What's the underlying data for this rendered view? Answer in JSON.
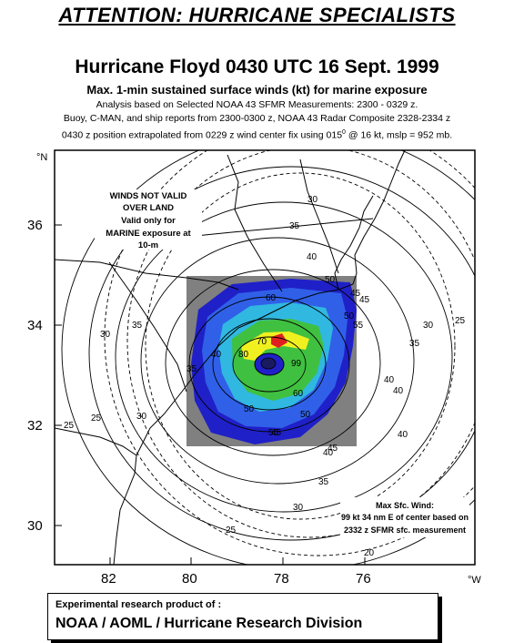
{
  "header": {
    "attention": "ATTENTION: HURRICANE SPECIALISTS",
    "title": "Hurricane Floyd 0430 UTC 16 Sept. 1999",
    "subtitle": "Max. 1-min sustained surface winds (kt) for marine exposure",
    "line1": "Analysis based on Selected NOAA 43 SFMR Measurements: 2300 - 0329 z.",
    "line2": "Buoy, C-MAN, and ship reports from 2300-0300 z, NOAA 43 Radar Composite 2328-2334 z",
    "line3_pre": "0430 z position extrapolated from 0229 z wind center fix using 015",
    "line3_sup": "0",
    "line3_post": " @ 16 kt, mslp = 952 mb."
  },
  "map": {
    "lat_labels": [
      "36",
      "34",
      "32",
      "30"
    ],
    "lon_labels": [
      "82",
      "80",
      "78",
      "76"
    ],
    "north_label": "°N",
    "west_label": "°W",
    "warning_lines": [
      "WINDS NOT VALID",
      "OVER LAND",
      "Valid only for",
      "MARINE exposure at",
      "10-m"
    ],
    "max_wind_lines": [
      "Max Sfc. Wind:",
      "99 kt  34 nm E of center based on",
      "2332 z SFMR sfc. measurement"
    ],
    "contour_labels": [
      "30",
      "35",
      "40",
      "45",
      "50",
      "55",
      "60",
      "70",
      "80",
      "99",
      "60",
      "50",
      "40",
      "35",
      "30",
      "25",
      "20",
      "25",
      "30",
      "35",
      "40",
      "45",
      "50",
      "55",
      "40",
      "35",
      "30",
      "25",
      "35",
      "30",
      "25",
      "45",
      "40",
      "25",
      "25",
      "40",
      "45",
      "50"
    ],
    "colors": {
      "radar_bg": "#808080",
      "blue_dark": "#2020c8",
      "blue": "#3060e8",
      "cyan": "#30b8e0",
      "green": "#40c040",
      "yellow": "#f0f020",
      "red": "#e02020"
    }
  },
  "footer": {
    "small": "Experimental research product of :",
    "big": "NOAA / AOML / Hurricane Research Division"
  }
}
